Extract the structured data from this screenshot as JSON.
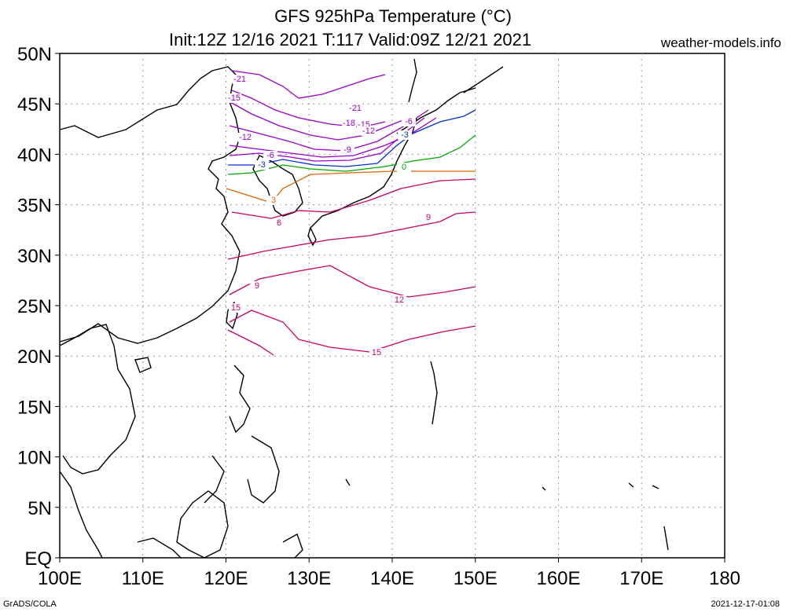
{
  "title": {
    "line1": "GFS 925hPa Temperature (°C)",
    "line2": "Init:12Z 12/16 2021 T:117 Valid:09Z 12/21 2021"
  },
  "site": "weather-models.info",
  "footer": {
    "left": "GrADS/COLA",
    "right": "2021-12-17-01:08"
  },
  "map": {
    "lon_range": [
      100,
      180
    ],
    "lat_range": [
      0,
      50
    ],
    "lon_ticks": [
      "100E",
      "110E",
      "120E",
      "130E",
      "140E",
      "150E",
      "160E",
      "170E",
      "180"
    ],
    "lat_ticks": [
      "EQ",
      "5N",
      "10N",
      "15N",
      "20N",
      "25N",
      "30N",
      "35N",
      "40N",
      "45N",
      "50N"
    ],
    "grid": "dotted",
    "data_domain": {
      "lon": [
        120,
        150
      ],
      "lat": [
        20,
        50
      ]
    },
    "contour_interval_c": 3,
    "contour_levels": [
      {
        "value": "-21",
        "color": "#9900cc"
      },
      {
        "value": "-18",
        "color": "#9900cc"
      },
      {
        "value": "-15",
        "color": "#9900cc"
      },
      {
        "value": "-12",
        "color": "#9900cc"
      },
      {
        "value": "-9",
        "color": "#9900cc"
      },
      {
        "value": "-6",
        "color": "#9900cc"
      },
      {
        "value": "-3",
        "color": "#0033cc"
      },
      {
        "value": "0",
        "color": "#00aa00"
      },
      {
        "value": "3",
        "color": "#dd6600"
      },
      {
        "value": "6",
        "color": "#cc0066"
      },
      {
        "value": "9",
        "color": "#cc0066"
      },
      {
        "value": "12",
        "color": "#cc0066"
      },
      {
        "value": "15",
        "color": "#cc0066"
      }
    ]
  }
}
